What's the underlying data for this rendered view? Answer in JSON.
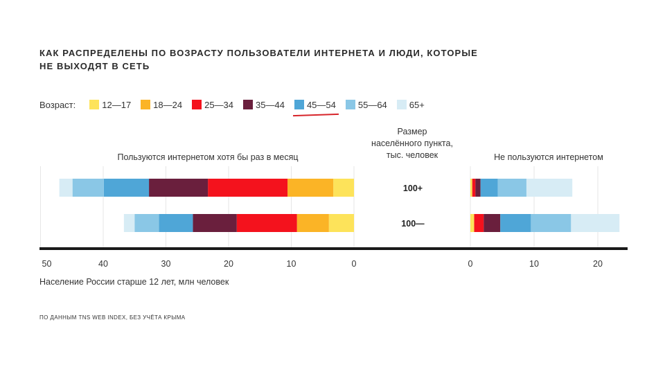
{
  "chart_data": {
    "type": "bar",
    "title_line1": "КАК РАСПРЕДЕЛЕНЫ ПО ВОЗРАСТУ ПОЛЬЗОВАТЕЛИ ИНТЕРНЕТА И ЛЮДИ, КОТОРЫЕ",
    "title_line2": "НЕ ВЫХОДЯТ В СЕТЬ",
    "legend_label": "Возраст:",
    "legend": [
      {
        "name": "12—17",
        "color": "#fde35a"
      },
      {
        "name": "18—24",
        "color": "#fbb426"
      },
      {
        "name": "25—34",
        "color": "#f4121d"
      },
      {
        "name": "35—44",
        "color": "#6a1f3d"
      },
      {
        "name": "45—54",
        "color": "#4fa6d7"
      },
      {
        "name": "55—64",
        "color": "#8ac7e6"
      },
      {
        "name": "65+",
        "color": "#d7ecf5"
      }
    ],
    "highlight_legend_index": 4,
    "left_panel_title": "Пользуются интернетом хотя бы раз в месяц",
    "right_panel_title": "Не пользуются интернетом",
    "center_header": "Размер\nнаселённого пункта,\nтыс. человек",
    "categories": [
      "100+",
      "100—"
    ],
    "users": [
      {
        "category": "100+",
        "segments": [
          3.3,
          7.3,
          12.7,
          9.4,
          7.2,
          5.0,
          2.1
        ]
      },
      {
        "category": "100—",
        "segments": [
          4.0,
          5.1,
          9.6,
          7.0,
          5.4,
          3.9,
          1.7
        ]
      }
    ],
    "non_users": [
      {
        "category": "100+",
        "segments": [
          0.3,
          0.5,
          0.8,
          2.7,
          4.5,
          7.2
        ]
      },
      {
        "category": "100—",
        "segments": [
          0.6,
          1.5,
          2.6,
          4.8,
          6.3,
          7.6
        ]
      }
    ],
    "non_users_order": [
      "12—17",
      "25—34",
      "35—44",
      "45—54",
      "55—64",
      "65+"
    ],
    "left_ticks": [
      50,
      40,
      30,
      20,
      10,
      0
    ],
    "right_ticks": [
      0,
      10,
      20
    ],
    "left_xlim": [
      0,
      50
    ],
    "right_xlim": [
      0,
      25
    ],
    "xlabel": "Население России старше 12 лет, млн человек",
    "footnote": "По данным TNS Web Index, без учёта Крыма"
  }
}
